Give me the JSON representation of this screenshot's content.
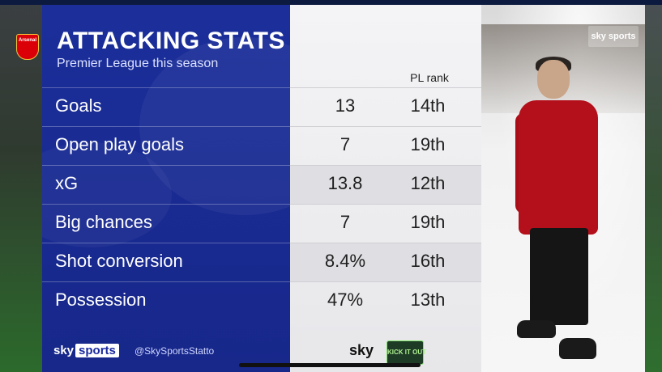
{
  "graphic": {
    "title": "ATTACKING STATS",
    "subtitle": "Premier League this season",
    "rank_header": "PL rank",
    "badge_text": "Arsenal"
  },
  "rows": [
    {
      "label": "Goals",
      "value": "13",
      "rank": "14th"
    },
    {
      "label": "Open play goals",
      "value": "7",
      "rank": "19th"
    },
    {
      "label": "xG",
      "value": "13.8",
      "rank": "12th"
    },
    {
      "label": "Big chances",
      "value": "7",
      "rank": "19th"
    },
    {
      "label": "Shot conversion",
      "value": "8.4%",
      "rank": "16th"
    },
    {
      "label": "Possession",
      "value": "47%",
      "rank": "13th"
    }
  ],
  "footer": {
    "sky": "sky",
    "sports": "sports",
    "handle": "@SkySportsStatto",
    "sky2": "sky",
    "kick_logo": "KICK IT OUT"
  },
  "broadcast_logo": "sky sports",
  "colors": {
    "panel_blue": "#1b2e9a",
    "panel_white": "#f4f4f6",
    "arsenal_red": "#db0007"
  },
  "icons": {
    "club": "arsenal-crest-icon",
    "broadcaster": "sky-sports-logo-icon"
  }
}
